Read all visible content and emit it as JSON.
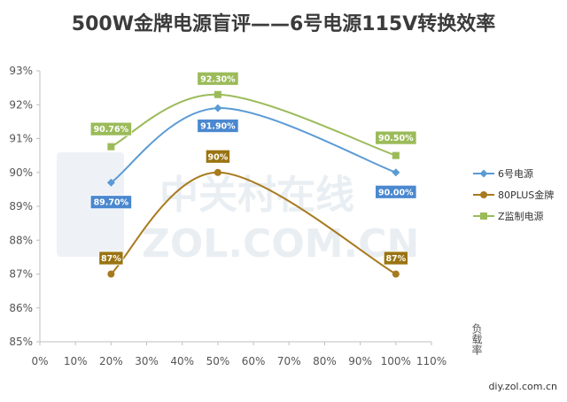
{
  "chart_data": {
    "type": "line",
    "title": "500W金牌电源盲评——6号电源115V转换效率",
    "xlabel": "负载率",
    "ylabel": "",
    "xlim": [
      0,
      110
    ],
    "ylim": [
      85,
      93
    ],
    "x_tick_labels": [
      "0%",
      "10%",
      "20%",
      "30%",
      "40%",
      "50%",
      "60%",
      "70%",
      "80%",
      "90%",
      "100%",
      "110%"
    ],
    "y_tick_labels": [
      "85%",
      "86%",
      "87%",
      "88%",
      "89%",
      "90%",
      "91%",
      "92%",
      "93%"
    ],
    "grid": false,
    "legend_position": "right",
    "series": [
      {
        "name": "6号电源",
        "color": "#5b9bd5",
        "marker": "diamond",
        "x": [
          20,
          50,
          100
        ],
        "values": [
          89.7,
          91.9,
          90.0
        ],
        "labels": [
          "89.70%",
          "91.90%",
          "90.00%"
        ],
        "label_bg": "#4a88cf",
        "label_fg": "#ffffff"
      },
      {
        "name": "80PLUS金牌",
        "color": "#a87a1e",
        "marker": "circle",
        "x": [
          20,
          50,
          100
        ],
        "values": [
          87,
          90,
          87
        ],
        "labels": [
          "87%",
          "90%",
          "87%"
        ],
        "label_bg": "#9a7412",
        "label_fg": "#ffffff"
      },
      {
        "name": "Z监制电源",
        "color": "#9bbb59",
        "marker": "square",
        "x": [
          20,
          50,
          100
        ],
        "values": [
          90.76,
          92.3,
          90.5
        ],
        "labels": [
          "90.76%",
          "92.30%",
          "90.50%"
        ],
        "label_bg": "#9bbb59",
        "label_fg": "#ffffff"
      }
    ]
  },
  "watermark": {
    "cn": "中关村在线",
    "en": "ZOL.COM.CN"
  },
  "site": "diy.zol.com.cn"
}
